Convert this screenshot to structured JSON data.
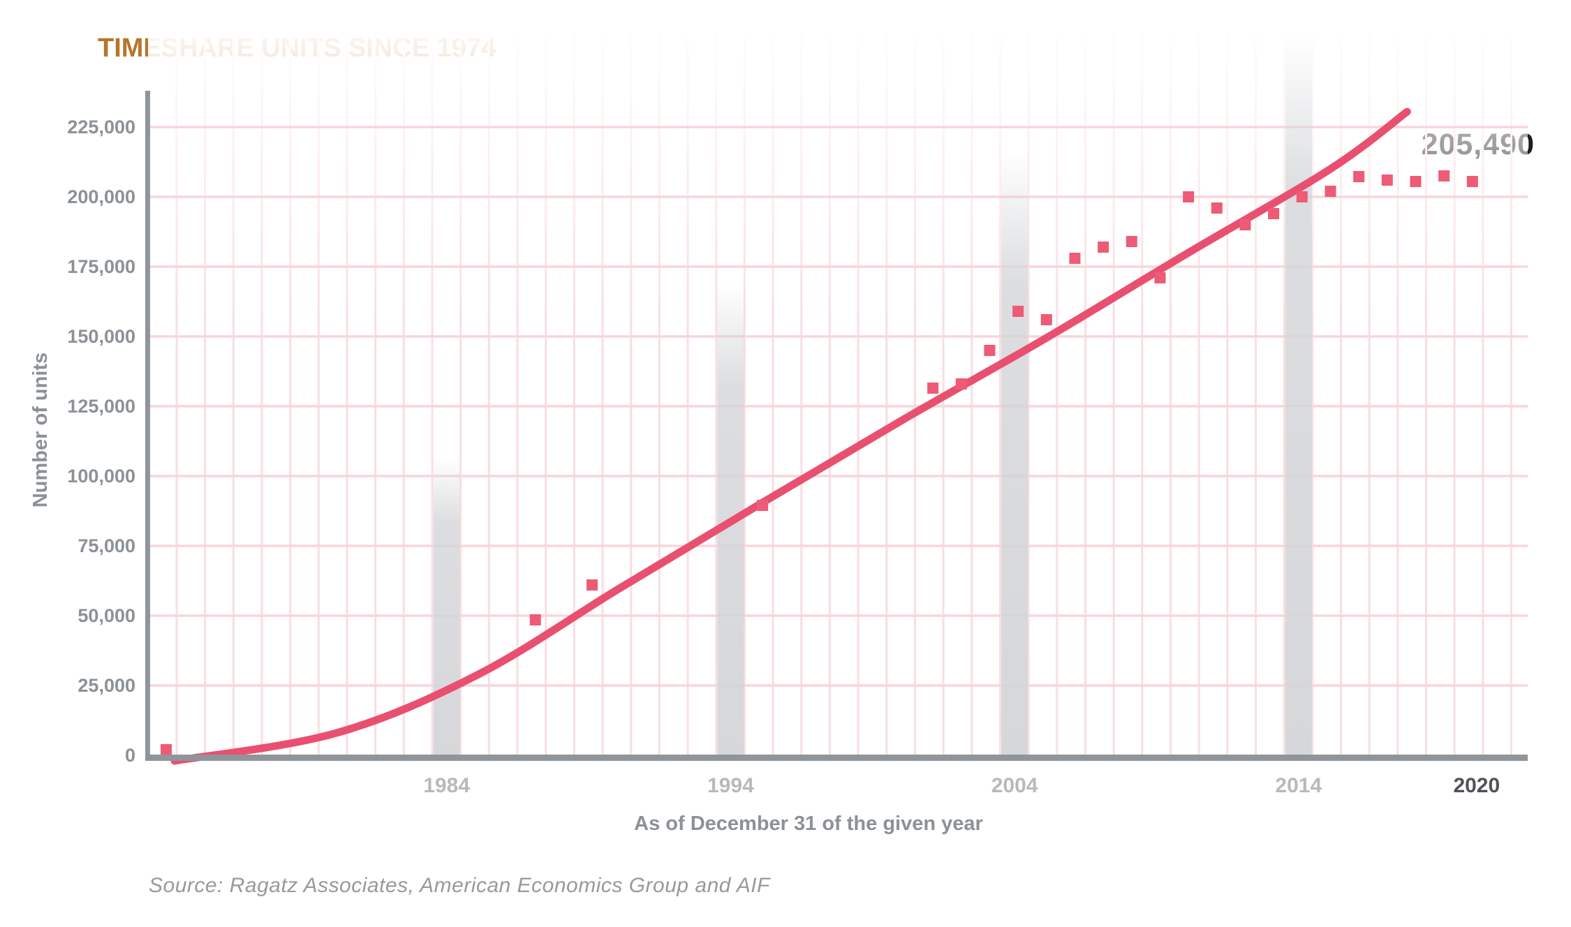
{
  "title": "TIMESHARE UNITS SINCE 1974",
  "annotation_label": "205,490",
  "source": "Source: Ragatz Associates, American Economics Group and AIF",
  "y_axis": {
    "label": "Number of units",
    "ticks": [
      {
        "label": "225,000",
        "value": 225000
      },
      {
        "label": "200,000",
        "value": 200000
      },
      {
        "label": "175,000",
        "value": 175000
      },
      {
        "label": "150,000",
        "value": 150000
      },
      {
        "label": "125,000",
        "value": 125000
      },
      {
        "label": "100,000",
        "value": 100000
      },
      {
        "label": "75,000",
        "value": 75000
      },
      {
        "label": "50,000",
        "value": 50000
      },
      {
        "label": "25,000",
        "value": 25000
      },
      {
        "label": "0",
        "value": 0
      }
    ]
  },
  "x_axis": {
    "label": "As of December 31 of the given year",
    "ticks": [
      {
        "label": "1984",
        "year": 1984,
        "emphasis": false
      },
      {
        "label": "1994",
        "year": 1994,
        "emphasis": false
      },
      {
        "label": "2004",
        "year": 2004,
        "emphasis": false
      },
      {
        "label": "2014",
        "year": 2014,
        "emphasis": false
      },
      {
        "label": "2020",
        "year": 2020,
        "emphasis": true
      }
    ]
  },
  "chart_data": {
    "type": "scatter",
    "title": "TIMESHARE UNITS SINCE 1974",
    "xlabel": "As of December 31 of the given year",
    "ylabel": "Number of units",
    "xlim": [
      1973.6,
      2022
    ],
    "ylim": [
      0,
      237000
    ],
    "y_tick_interval": 25000,
    "x_ticks": [
      1984,
      1994,
      2004,
      2014,
      2020
    ],
    "grid": "light pink grid: vertical line每 year, horizontal line every 25,000 units",
    "highlight_decade_bands": [
      1984,
      1994,
      2004,
      2014
    ],
    "last_point_label": "205,490",
    "points": [
      {
        "year": 1974,
        "units": 2000
      },
      {
        "year": 1987,
        "units": 48500
      },
      {
        "year": 1989,
        "units": 61000
      },
      {
        "year": 1995,
        "units": 89500
      },
      {
        "year": 2001,
        "units": 131500
      },
      {
        "year": 2002,
        "units": 133000
      },
      {
        "year": 2003,
        "units": 145000
      },
      {
        "year": 2004,
        "units": 159000
      },
      {
        "year": 2005,
        "units": 156000
      },
      {
        "year": 2006,
        "units": 178000
      },
      {
        "year": 2007,
        "units": 182000
      },
      {
        "year": 2008,
        "units": 184000
      },
      {
        "year": 2009,
        "units": 171000
      },
      {
        "year": 2010,
        "units": 200000
      },
      {
        "year": 2011,
        "units": 196000
      },
      {
        "year": 2012,
        "units": 190000
      },
      {
        "year": 2013,
        "units": 194000
      },
      {
        "year": 2014,
        "units": 200000
      },
      {
        "year": 2015,
        "units": 202000
      },
      {
        "year": 2016,
        "units": 207250
      },
      {
        "year": 2017,
        "units": 206000
      },
      {
        "year": 2018,
        "units": 205500
      },
      {
        "year": 2019,
        "units": 207500
      },
      {
        "year": 2020,
        "units": 205490
      }
    ],
    "trend_line": [
      {
        "year": 1974.3,
        "units": -2000
      },
      {
        "year": 1980,
        "units": 8000
      },
      {
        "year": 1985,
        "units": 29000
      },
      {
        "year": 1990,
        "units": 60000
      },
      {
        "year": 1995,
        "units": 90500
      },
      {
        "year": 2000,
        "units": 120500
      },
      {
        "year": 2005,
        "units": 149500
      },
      {
        "year": 2010,
        "units": 180000
      },
      {
        "year": 2015,
        "units": 210000
      },
      {
        "year": 2017.7,
        "units": 230500
      }
    ],
    "colors": {
      "trend_pink": "#E95070",
      "point_pink": "#ED5B76",
      "title_brown": "#B5762B",
      "grid_pink_vertical": "#FADEE1",
      "grid_pink_horizontal": "#F8D6DA",
      "axis_gray": "#8F959A",
      "band_gray": "#D3D5D8",
      "tick_text_gray": "#8B9196",
      "decade_tick_gray": "#B6BABD",
      "final_tick_dark": "#4F5357",
      "annotation_black": "#1C1C1C",
      "source_gray": "#97999C"
    }
  }
}
